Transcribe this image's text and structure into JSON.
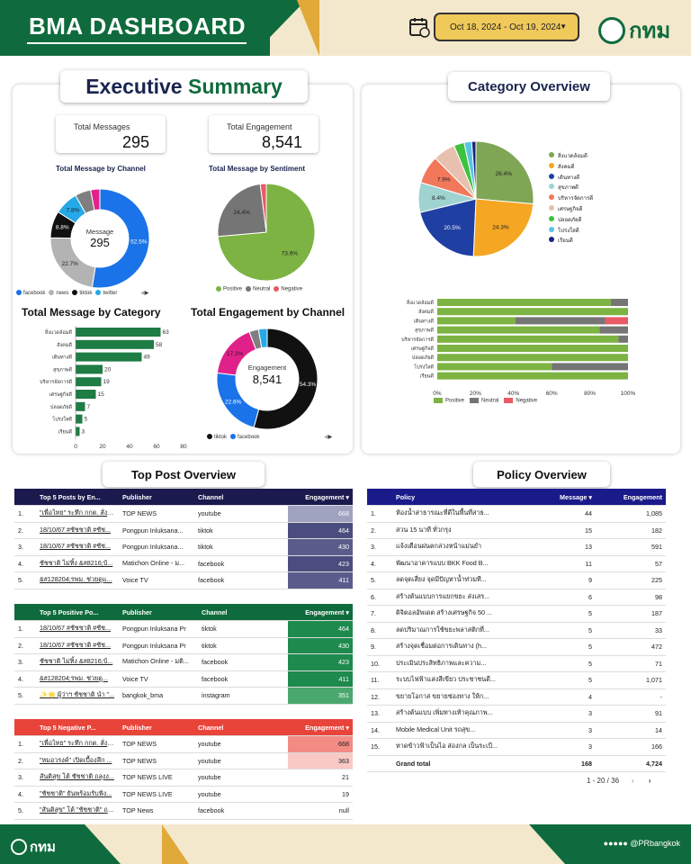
{
  "header": {
    "title": "BMA DASHBOARD",
    "date_range": "Oct 18, 2024 - Oct 19, 2024",
    "logo_text": "กทม"
  },
  "exec": {
    "title_a": "Executive",
    "title_b": "Summary",
    "kpi1_label": "Total Messages",
    "kpi1_value": "295",
    "kpi2_label": "Total Engagement",
    "kpi2_value": "8,541"
  },
  "channel": {
    "title": "Total Message by Channel",
    "center_label": "Message",
    "center_value": "295",
    "slices": [
      {
        "name": "facebook",
        "value": 52.5,
        "label": "52.5%",
        "color": "#1a73e8"
      },
      {
        "name": "news",
        "value": 22.7,
        "label": "22.7%",
        "color": "#b3b3b3"
      },
      {
        "name": "tiktok",
        "value": 8.8,
        "label": "8.8%",
        "color": "#111111"
      },
      {
        "name": "twitter",
        "value": 7.8,
        "label": "7.8%",
        "color": "#25a9e8"
      },
      {
        "name": "other1",
        "value": 5.2,
        "label": "",
        "color": "#7f7f7f"
      },
      {
        "name": "other2",
        "value": 3.0,
        "label": "",
        "color": "#e0218a"
      }
    ],
    "legend": [
      "facebook",
      "news",
      "tiktok",
      "twitter"
    ]
  },
  "sentiment": {
    "title": "Total Message by Sentiment",
    "slices": [
      {
        "name": "Positive",
        "value": 73.6,
        "label": "73.6%",
        "color": "#7cb342"
      },
      {
        "name": "Neutral",
        "value": 24.4,
        "label": "24.4%",
        "color": "#757575"
      },
      {
        "name": "Negative",
        "value": 2.0,
        "label": "",
        "color": "#e85a66"
      }
    ],
    "legend": [
      "Positive",
      "Neutral",
      "Negative"
    ]
  },
  "category": {
    "title": "Total Message by Category",
    "items": [
      {
        "name": "สิ่งแวดล้อมดี",
        "value": 63
      },
      {
        "name": "สังคมดี",
        "value": 58
      },
      {
        "name": "เดินทางดี",
        "value": 49
      },
      {
        "name": "สุขภาพดี",
        "value": 20
      },
      {
        "name": "บริหารจัดการดี",
        "value": 19
      },
      {
        "name": "เศรษฐกิจดี",
        "value": 15
      },
      {
        "name": "ปลอดภัยดี",
        "value": 7
      },
      {
        "name": "โปร่งใสดี",
        "value": 5
      },
      {
        "name": "เรียนดี",
        "value": 3
      }
    ],
    "ticks": [
      "0",
      "20",
      "40",
      "60",
      "80"
    ]
  },
  "engagement": {
    "title": "Total Engagement by Channel",
    "center_label": "Engagement",
    "center_value": "8,541",
    "slices": [
      {
        "name": "tiktok",
        "value": 54.3,
        "label": "54.3%",
        "color": "#111111"
      },
      {
        "name": "facebook",
        "value": 22.6,
        "label": "22.6%",
        "color": "#1a73e8"
      },
      {
        "name": "pink",
        "value": 17.3,
        "label": "17.3%",
        "color": "#e0218a"
      },
      {
        "name": "other",
        "value": 3.0,
        "label": "",
        "color": "#7f7f7f"
      },
      {
        "name": "other2",
        "value": 2.8,
        "label": "",
        "color": "#25a9e8"
      }
    ],
    "legend": [
      "tiktok",
      "facebook"
    ]
  },
  "catoverview": {
    "title": "Category Overview",
    "pie": [
      {
        "name": "สิ่งแวดล้อมดี",
        "value": 26.4,
        "label": "26.4%",
        "color": "#7ea655"
      },
      {
        "name": "สังคมดี",
        "value": 24.3,
        "label": "24.3%",
        "color": "#f5a623"
      },
      {
        "name": "เดินทางดี",
        "value": 20.5,
        "label": "20.5%",
        "color": "#1f3fa3"
      },
      {
        "name": "สุขภาพดี",
        "value": 8.4,
        "label": "8.4%",
        "color": "#9fd3d0"
      },
      {
        "name": "บริหารจัดการดี",
        "value": 7.9,
        "label": "7.9%",
        "color": "#f2785c"
      },
      {
        "name": "เศรษฐกิจดี",
        "value": 6.3,
        "label": "",
        "color": "#e8c0b0"
      },
      {
        "name": "ปลอดภัยดี",
        "value": 2.9,
        "label": "",
        "color": "#3ec23e"
      },
      {
        "name": "โปร่งใสดี",
        "value": 2.1,
        "label": "",
        "color": "#5bc2e7"
      },
      {
        "name": "เรียนดี",
        "value": 1.2,
        "label": "",
        "color": "#1a237e"
      }
    ],
    "bars": [
      {
        "name": "สิ่งแวดล้อมดี",
        "pos": 91,
        "neu": 9,
        "neg": 0
      },
      {
        "name": "สังคมดี",
        "pos": 100,
        "neu": 0,
        "neg": 0
      },
      {
        "name": "เดินทางดี",
        "pos": 41,
        "neu": 47,
        "neg": 12
      },
      {
        "name": "สุขภาพดี",
        "pos": 85,
        "neu": 15,
        "neg": 0
      },
      {
        "name": "บริหารจัดการดี",
        "pos": 95,
        "neu": 5,
        "neg": 0
      },
      {
        "name": "เศรษฐกิจดี",
        "pos": 100,
        "neu": 0,
        "neg": 0
      },
      {
        "name": "ปลอดภัยดี",
        "pos": 100,
        "neu": 0,
        "neg": 0
      },
      {
        "name": "โปร่งใสดี",
        "pos": 60,
        "neu": 40,
        "neg": 0
      },
      {
        "name": "เรียนดี",
        "pos": 100,
        "neu": 0,
        "neg": 0
      }
    ],
    "ticks": [
      "0%",
      "20%",
      "40%",
      "60%",
      "80%",
      "100%"
    ],
    "legend": [
      "Positive",
      "Neutral",
      "Negative"
    ]
  },
  "toppost": {
    "title": "Top Post Overview",
    "t1": {
      "headers": [
        "Top 5 Posts by En...",
        "Publisher",
        "Channel",
        "Engagement ▾"
      ],
      "rows": [
        [
          "1.",
          "\"เพื่อไทย\" ระทึก กกต. สั่งสอ...",
          "TOP NEWS",
          "youtube",
          "668"
        ],
        [
          "2.",
          "18/10/67 #ชัชชาติ #ชัช...",
          "Pongpun Inluksana...",
          "tiktok",
          "464"
        ],
        [
          "3.",
          "18/10/67 #ชัชชาติ #ชัช...",
          "Pongpun Inluksana...",
          "tiktok",
          "430"
        ],
        [
          "4.",
          "ชัชชาติ ไม่ทิ้ง &#8216;บ้...",
          "Matichon Online - ม...",
          "facebook",
          "423"
        ],
        [
          "5.",
          "&#128204;รพม. ช่วยดูแ...",
          "Voice TV",
          "facebook",
          "411"
        ]
      ]
    },
    "t2": {
      "headers": [
        "Top 5 Positive Po...",
        "Publisher",
        "Channel",
        "Engagement ▾"
      ],
      "rows": [
        [
          "1.",
          "18/10/67 #ชัชชาติ #ชัช...",
          "Pongpun Inluksana Pr",
          "tiktok",
          "464"
        ],
        [
          "2.",
          "18/10/67 #ชัชชาติ #ชัช...",
          "Pongpun Inluksana Pr",
          "tiktok",
          "430"
        ],
        [
          "3.",
          "ชัชชาติ ไม่ทิ้ง &#8216;บ้...",
          "Matichon Online - มติ...",
          "facebook",
          "423"
        ],
        [
          "4.",
          "&#128204;รพม. ช่วยดู...",
          "Voice TV",
          "facebook",
          "411"
        ],
        [
          "5.",
          "✨🌟 ผู้ว่าฯ ชัชชาติ นำ \"...",
          "bangkok_bma",
          "instagram",
          "351"
        ]
      ]
    },
    "t3": {
      "headers": [
        "Top 5 Negative P...",
        "Publisher",
        "Channel",
        "Engagement ▾"
      ],
      "rows": [
        [
          "1.",
          "\"เพื่อไทย\" ระทึก กกต. สั่งส...",
          "TOP NEWS",
          "youtube",
          "668"
        ],
        [
          "2.",
          "\"หมอวรงค์\" เปิดเบื้องลึก ...",
          "TOP NEWS",
          "youtube",
          "363"
        ],
        [
          "3.",
          "สันติสุข โต้ ชัชชาติ ถลุงง...",
          "TOP NEWS LIVE",
          "youtube",
          "21"
        ],
        [
          "4.",
          "\"ชัชชาติ\" ยันพร้อมรับฟัง...",
          "TOP NEWS LIVE",
          "youtube",
          "19"
        ],
        [
          "5.",
          "\"สันติสุข\" โต้ \"ชัชชาติ\" ถล...",
          "TOP News",
          "facebook",
          "null"
        ]
      ]
    }
  },
  "policy": {
    "title": "Policy Overview",
    "headers": [
      "",
      "Policy",
      "Message ▾",
      "Engagement"
    ],
    "rows": [
      [
        "1.",
        "ห้องน้ำสาธารณะที่ดีในพื้นที่สาธ...",
        "44",
        "1,085"
      ],
      [
        "2.",
        "สวน 15 นาที ทั่วกรุง",
        "15",
        "182"
      ],
      [
        "3.",
        "แจ้งเตือนฝนตกล่วงหน้าแม่นยำ",
        "13",
        "591"
      ],
      [
        "4.",
        "พัฒนาอาคารแบบ BKK Food B...",
        "11",
        "57"
      ],
      [
        "5.",
        "ลดจุดเสี่ยง จุดมีปัญหาน้ำท่วมที...",
        "9",
        "225"
      ],
      [
        "6.",
        "สร้างต้นแบบการแยกขยะ ส่งเสร...",
        "6",
        "98"
      ],
      [
        "7.",
        "ดิจิตอลอัพเดต สร้างเศรษฐกิจ 50 ...",
        "5",
        "187"
      ],
      [
        "8.",
        "ลดปริมาณการใช้ขยะพลาสติกที่...",
        "5",
        "33"
      ],
      [
        "9.",
        "สร้างจุดเชื่อมต่อการเดินทาง (h...",
        "5",
        "472"
      ],
      [
        "10.",
        "ประเมินประสิทธิภาพและความ...",
        "5",
        "71"
      ],
      [
        "11.",
        "ระบบไฟฟ้าแสงสีเขียว ประชาชนดี...",
        "5",
        "1,071"
      ],
      [
        "12.",
        "ขยายโอกาส ขยายช่องทาง ให้ก...",
        "4",
        "-"
      ],
      [
        "13.",
        "สร้างต้นแบบ เพิ่มทางเท้าคุณภาพ...",
        "3",
        "91"
      ],
      [
        "14.",
        "Mobile Medical Unit รถสุข...",
        "3",
        "14"
      ],
      [
        "15.",
        "หาดข้าวฟ้าเป็นไอ ส่องกล เป็นระเบี...",
        "3",
        "166"
      ]
    ],
    "total_label": "Grand total",
    "total_msg": "168",
    "total_eng": "4,724",
    "pager": "1 - 20 / 36"
  },
  "footer": {
    "logo_text": "กทม",
    "handle": "@PRbangkok"
  }
}
